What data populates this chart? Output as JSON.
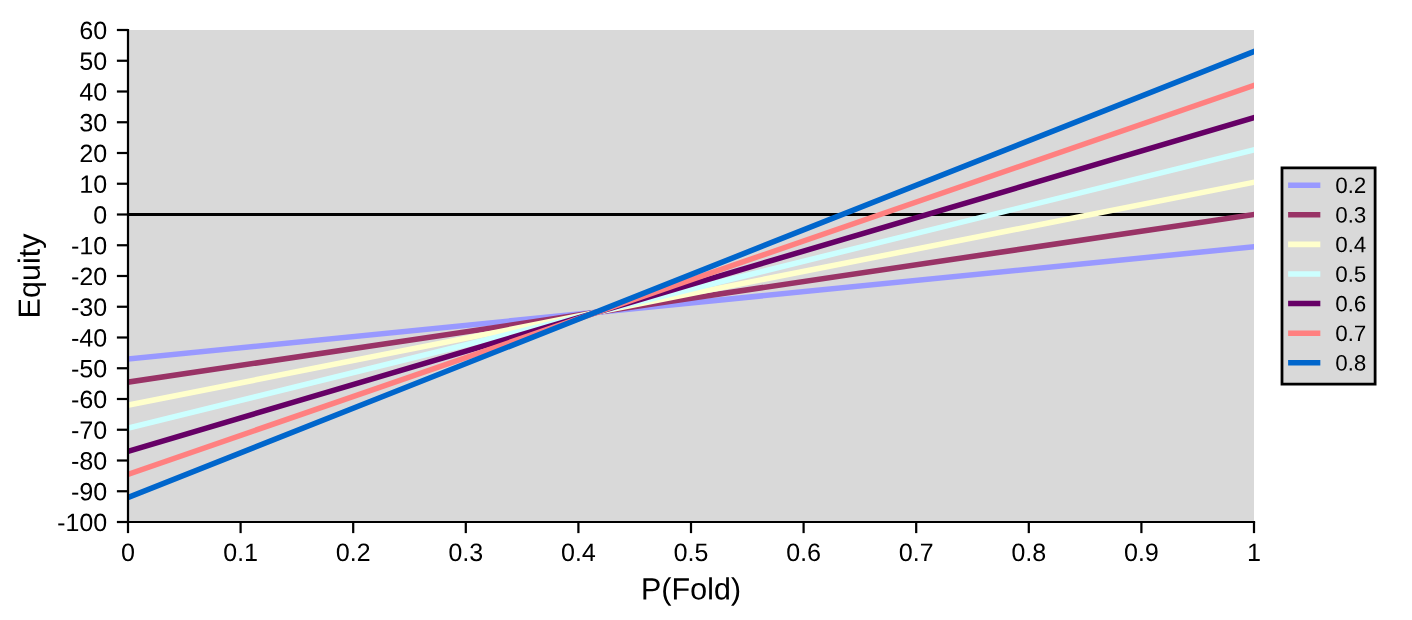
{
  "chart_data": {
    "type": "line",
    "xlabel": "P(Fold)",
    "ylabel": "Equity",
    "x": [
      0,
      1
    ],
    "series": [
      {
        "name": "0.2",
        "color": "#9999ff",
        "values": [
          -47,
          -10.5
        ]
      },
      {
        "name": "0.3",
        "color": "#993366",
        "values": [
          -54.5,
          0
        ]
      },
      {
        "name": "0.4",
        "color": "#ffffcc",
        "values": [
          -62,
          10.5
        ]
      },
      {
        "name": "0.5",
        "color": "#ccffff",
        "values": [
          -69.5,
          21
        ]
      },
      {
        "name": "0.6",
        "color": "#660066",
        "values": [
          -77,
          31.5
        ]
      },
      {
        "name": "0.7",
        "color": "#ff8080",
        "values": [
          -84.5,
          42
        ]
      },
      {
        "name": "0.8",
        "color": "#0066cc",
        "values": [
          -92,
          53
        ]
      }
    ],
    "xlim": [
      0,
      1
    ],
    "xticks": [
      0,
      0.1,
      0.2,
      0.3,
      0.4,
      0.5,
      0.6,
      0.7,
      0.8,
      0.9,
      1
    ],
    "ylim": [
      -100,
      60
    ],
    "yticks": [
      -100,
      -90,
      -80,
      -70,
      -60,
      -50,
      -40,
      -30,
      -20,
      -10,
      0,
      10,
      20,
      30,
      40,
      50,
      60
    ],
    "ref_lines": [
      {
        "axis": "y",
        "value": 0,
        "color": "#000000"
      }
    ],
    "grid": false,
    "legend": "right",
    "marker": "none",
    "line_style": "solid"
  }
}
